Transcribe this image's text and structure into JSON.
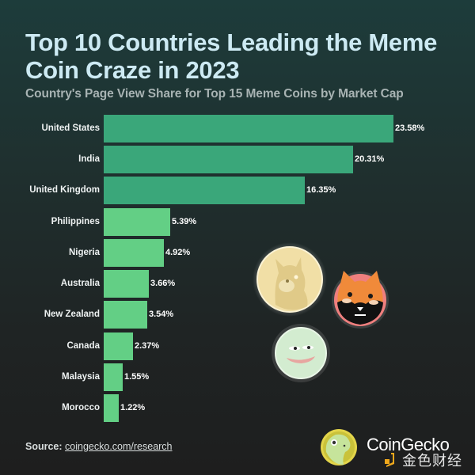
{
  "header": {
    "title": "Top 10 Countries Leading the Meme Coin Craze in 2023",
    "subtitle": "Country's Page View Share for Top 15 Meme Coins by Market Cap"
  },
  "chart_data": {
    "type": "bar",
    "orientation": "horizontal",
    "title": "Top 10 Countries Leading the Meme Coin Craze in 2023",
    "subtitle": "Country's Page View Share for Top 15 Meme Coins by Market Cap",
    "xlabel": "",
    "ylabel": "",
    "grid": false,
    "legend": "none",
    "unit": "%",
    "categories": [
      "United States",
      "India",
      "United Kingdom",
      "Philippines",
      "Nigeria",
      "Australia",
      "New Zealand",
      "Canada",
      "Malaysia",
      "Morocco"
    ],
    "values": [
      23.58,
      20.31,
      16.35,
      5.39,
      4.92,
      3.66,
      3.54,
      2.37,
      1.55,
      1.22
    ],
    "value_labels": [
      "23.58%",
      "20.31%",
      "16.35%",
      "5.39%",
      "4.92%",
      "3.66%",
      "3.54%",
      "2.37%",
      "1.55%",
      "1.22%"
    ],
    "colors": {
      "top3": "#3aa77a",
      "rest": "#63cf85"
    },
    "xlim": [
      0,
      23.58
    ]
  },
  "illustrations": [
    "dogecoin-coin",
    "shiba-inu-coin",
    "pepe-coin"
  ],
  "footer": {
    "source_label": "Source:",
    "source_link": "coingecko.com/research",
    "brand": "CoinGecko",
    "watermark": "金色财经"
  }
}
